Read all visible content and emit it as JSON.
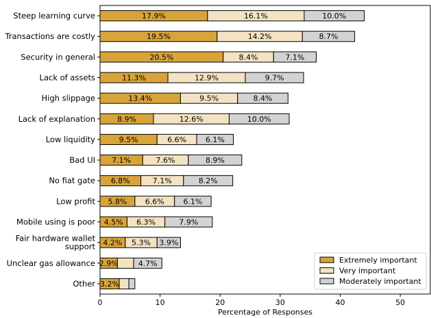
{
  "chart_data": {
    "type": "bar",
    "orientation": "horizontal",
    "stacked": true,
    "categories": [
      "Steep learning curve",
      "Transactions are costly",
      "Security in general",
      "Lack of assets",
      "High slippage",
      "Lack of explanation",
      "Low liquidity",
      "Bad UI",
      "No fiat gate",
      "Low profit",
      "Mobile using is poor",
      "Fair hardware wallet\nsupport",
      "Unclear gas allowance",
      "Other"
    ],
    "series": [
      {
        "name": "Extremely important",
        "color": "#D8A43A",
        "values": [
          17.9,
          19.5,
          20.5,
          11.3,
          13.4,
          8.9,
          9.5,
          7.1,
          6.8,
          5.8,
          4.5,
          4.2,
          2.9,
          3.2
        ],
        "labels": [
          "17.9%",
          "19.5%",
          "20.5%",
          "11.3%",
          "13.4%",
          "8.9%",
          "9.5%",
          "7.1%",
          "6.8%",
          "5.8%",
          "4.5%",
          "4.2%",
          "2.9%",
          "3.2%"
        ]
      },
      {
        "name": "Very important",
        "color": "#F3E3C3",
        "values": [
          16.1,
          14.2,
          8.4,
          12.9,
          9.5,
          12.6,
          6.6,
          7.6,
          7.1,
          6.6,
          6.3,
          5.3,
          2.7,
          1.6
        ],
        "labels": [
          "16.1%",
          "14.2%",
          "8.4%",
          "12.9%",
          "9.5%",
          "12.6%",
          "6.6%",
          "7.6%",
          "7.1%",
          "6.6%",
          "6.3%",
          "5.3%",
          "",
          ""
        ]
      },
      {
        "name": "Moderately important",
        "color": "#D3D3D3",
        "values": [
          10.0,
          8.7,
          7.1,
          9.7,
          8.4,
          10.0,
          6.1,
          8.9,
          8.2,
          6.1,
          7.9,
          3.9,
          4.7,
          1.0
        ],
        "labels": [
          "10.0%",
          "8.7%",
          "7.1%",
          "9.7%",
          "8.4%",
          "10.0%",
          "6.1%",
          "8.9%",
          "8.2%",
          "6.1%",
          "7.9%",
          "3.9%",
          "4.7%",
          ""
        ]
      }
    ],
    "xlabel": "Percentage of Responses",
    "ylabel": "",
    "xlim": [
      0,
      55
    ],
    "xticks": [
      0,
      10,
      20,
      30,
      40,
      50
    ],
    "grid": false,
    "legend_position": "lower-right"
  }
}
